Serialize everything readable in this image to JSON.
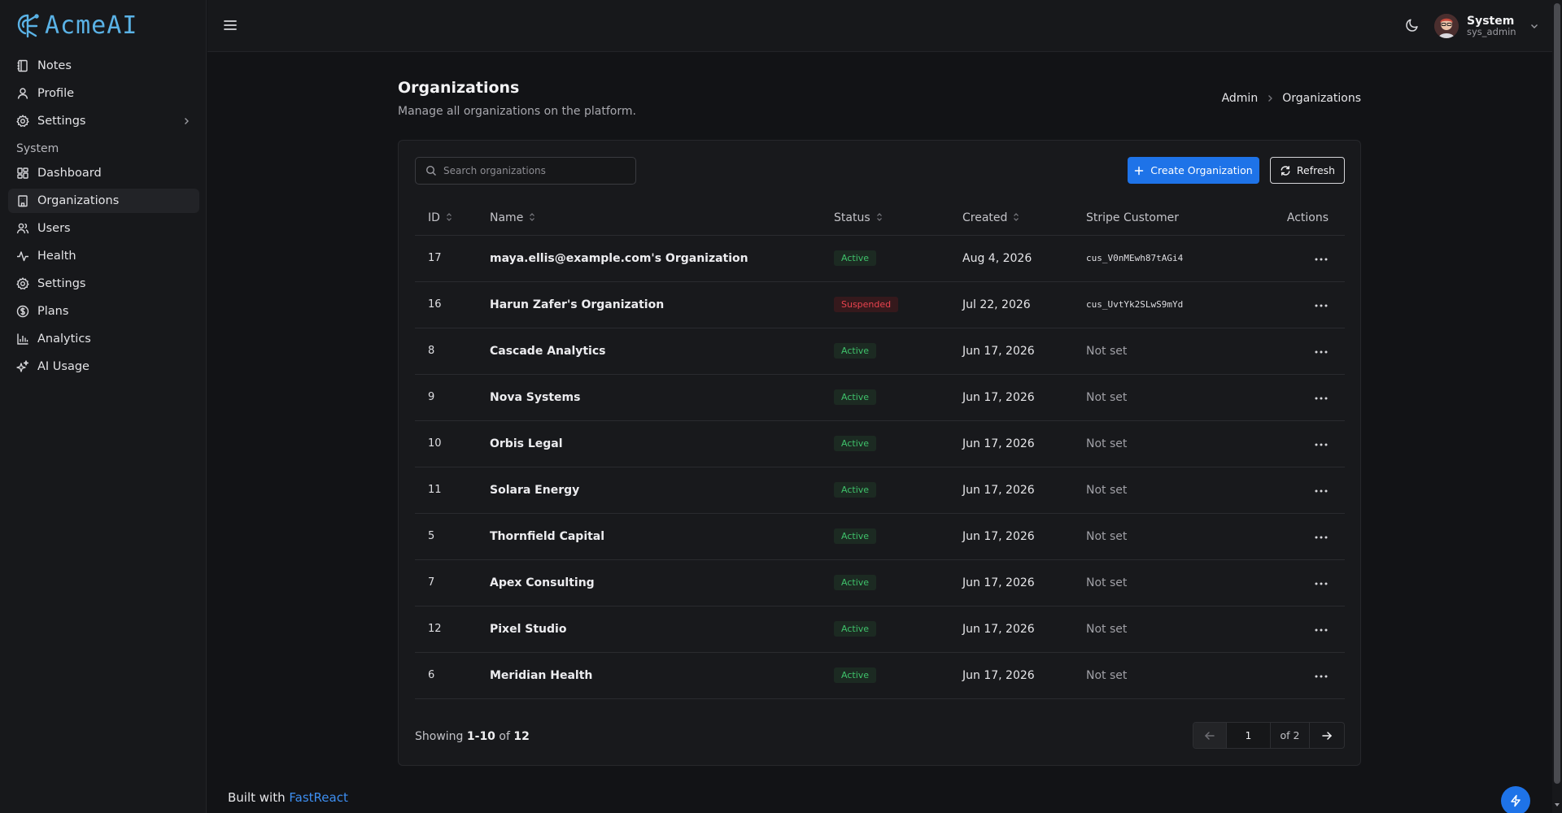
{
  "app": {
    "logo_text": "AcmeAI"
  },
  "sidebar": {
    "items": [
      {
        "label": "Notes",
        "icon": "notebook-icon"
      },
      {
        "label": "Profile",
        "icon": "user-icon"
      },
      {
        "label": "Settings",
        "icon": "gear-icon",
        "has_submenu": true
      }
    ],
    "section_title": "System",
    "system_items": [
      {
        "label": "Dashboard",
        "icon": "dashboard-icon"
      },
      {
        "label": "Organizations",
        "icon": "building-icon",
        "active": true
      },
      {
        "label": "Users",
        "icon": "users-icon"
      },
      {
        "label": "Health",
        "icon": "activity-icon"
      },
      {
        "label": "Settings",
        "icon": "gear-icon"
      },
      {
        "label": "Plans",
        "icon": "dollar-icon"
      },
      {
        "label": "Analytics",
        "icon": "bar-chart-icon"
      },
      {
        "label": "AI Usage",
        "icon": "sparkles-icon"
      }
    ]
  },
  "topbar": {
    "user_name": "System",
    "user_handle": "sys_admin"
  },
  "page": {
    "title": "Organizations",
    "subtitle": "Manage all organizations on the platform.",
    "breadcrumb": [
      "Admin",
      "Organizations"
    ]
  },
  "toolbar": {
    "search_placeholder": "Search organizations",
    "create_label": "Create Organization",
    "refresh_label": "Refresh"
  },
  "table": {
    "headers": {
      "id": "ID",
      "name": "Name",
      "status": "Status",
      "created": "Created",
      "stripe": "Stripe Customer",
      "actions": "Actions"
    },
    "rows": [
      {
        "id": "17",
        "name": "maya.ellis@example.com's Organization",
        "status": "Active",
        "created": "Aug 4, 2026",
        "stripe": "cus_V0nMEwh87tAGi4"
      },
      {
        "id": "16",
        "name": "Harun Zafer's Organization",
        "status": "Suspended",
        "created": "Jul 22, 2026",
        "stripe": "cus_UvtYk2SLwS9mYd"
      },
      {
        "id": "8",
        "name": "Cascade Analytics",
        "status": "Active",
        "created": "Jun 17, 2026",
        "stripe": "Not set"
      },
      {
        "id": "9",
        "name": "Nova Systems",
        "status": "Active",
        "created": "Jun 17, 2026",
        "stripe": "Not set"
      },
      {
        "id": "10",
        "name": "Orbis Legal",
        "status": "Active",
        "created": "Jun 17, 2026",
        "stripe": "Not set"
      },
      {
        "id": "11",
        "name": "Solara Energy",
        "status": "Active",
        "created": "Jun 17, 2026",
        "stripe": "Not set"
      },
      {
        "id": "5",
        "name": "Thornfield Capital",
        "status": "Active",
        "created": "Jun 17, 2026",
        "stripe": "Not set"
      },
      {
        "id": "7",
        "name": "Apex Consulting",
        "status": "Active",
        "created": "Jun 17, 2026",
        "stripe": "Not set"
      },
      {
        "id": "12",
        "name": "Pixel Studio",
        "status": "Active",
        "created": "Jun 17, 2026",
        "stripe": "Not set"
      },
      {
        "id": "6",
        "name": "Meridian Health",
        "status": "Active",
        "created": "Jun 17, 2026",
        "stripe": "Not set"
      }
    ]
  },
  "pagination": {
    "showing_prefix": "Showing",
    "range": "1-10",
    "of_word": "of",
    "total": "12",
    "current_page": "1",
    "of_pages": "of 2"
  },
  "footer": {
    "built_with": "Built with",
    "brand": "FastReact"
  },
  "colors": {
    "accent": "#1e73e8",
    "active_badge": "#3fc26b",
    "suspended_badge": "#e9434e",
    "logo": "#5ab2e6"
  }
}
